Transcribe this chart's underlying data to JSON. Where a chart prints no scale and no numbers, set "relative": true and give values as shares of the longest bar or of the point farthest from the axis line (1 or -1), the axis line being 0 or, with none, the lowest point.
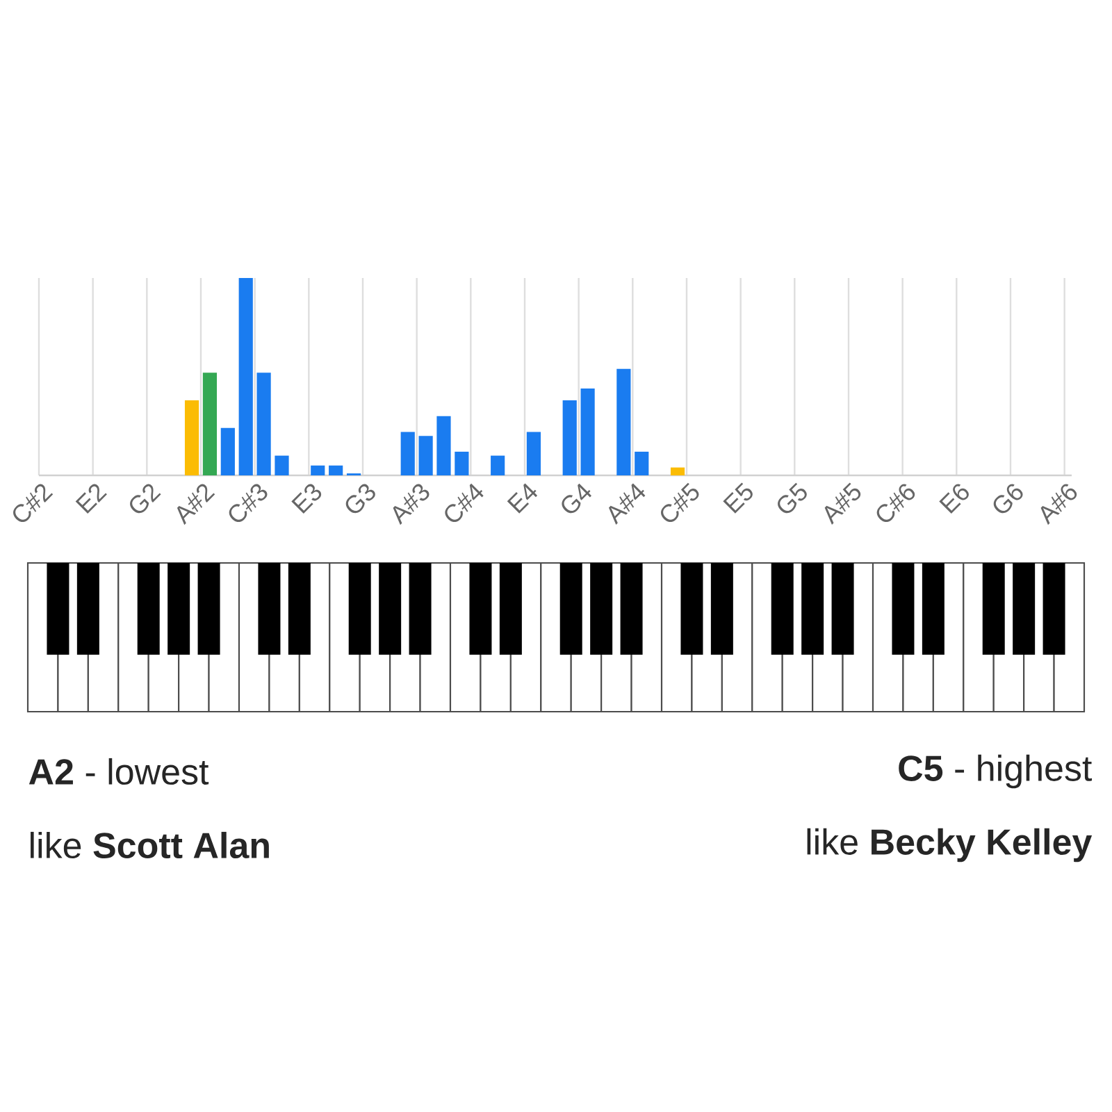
{
  "chart_data": {
    "type": "bar",
    "relative": true,
    "grid": "x",
    "categories": [
      "C#2",
      null,
      null,
      "E2",
      null,
      null,
      "G2",
      null,
      null,
      "A#2",
      null,
      null,
      "C#3",
      null,
      null,
      "E3",
      null,
      null,
      "G3",
      null,
      null,
      "A#3",
      null,
      null,
      "C#4",
      null,
      null,
      "E4",
      null,
      null,
      "G4",
      null,
      null,
      "A#4",
      null,
      null,
      "C#5",
      null,
      null,
      "E5",
      null,
      null,
      "G5",
      null,
      null,
      "A#5",
      null,
      null,
      "C#6",
      null,
      null,
      "E6",
      null,
      null,
      "G6",
      null,
      null,
      "A#6"
    ],
    "values": [
      null,
      null,
      null,
      null,
      null,
      null,
      null,
      null,
      0.38,
      0.52,
      0.24,
      1,
      0.52,
      0.1,
      null,
      0.05,
      0.05,
      0.01,
      null,
      null,
      0.22,
      0.2,
      0.3,
      0.12,
      null,
      0.1,
      null,
      0.22,
      null,
      0.38,
      0.44,
      null,
      0.54,
      0.12,
      null,
      0.04,
      null,
      null,
      null,
      null,
      null,
      null,
      null,
      null,
      null,
      null,
      null,
      null,
      null,
      null,
      null,
      null,
      null,
      null,
      null,
      null,
      null,
      null
    ],
    "colors": [
      "#1a7cf0",
      "#1a7cf0",
      "#1a7cf0",
      "#1a7cf0",
      "#1a7cf0",
      "#1a7cf0",
      "#1a7cf0",
      "#1a7cf0",
      "#fbbc04",
      "#34a853",
      "#1a7cf0",
      "#1a7cf0",
      "#1a7cf0",
      "#1a7cf0",
      "#1a7cf0",
      "#1a7cf0",
      "#1a7cf0",
      "#1a7cf0",
      "#1a7cf0",
      "#1a7cf0",
      "#1a7cf0",
      "#1a7cf0",
      "#1a7cf0",
      "#1a7cf0",
      "#1a7cf0",
      "#1a7cf0",
      "#1a7cf0",
      "#1a7cf0",
      "#1a7cf0",
      "#1a7cf0",
      "#1a7cf0",
      "#1a7cf0",
      "#1a7cf0",
      "#1a7cf0",
      "#1a7cf0",
      "#fbbc04",
      "#1a7cf0",
      "#1a7cf0",
      "#1a7cf0",
      "#1a7cf0",
      "#1a7cf0",
      "#1a7cf0",
      "#1a7cf0",
      "#1a7cf0",
      "#1a7cf0",
      "#1a7cf0",
      "#1a7cf0",
      "#1a7cf0",
      "#1a7cf0",
      "#1a7cf0",
      "#1a7cf0",
      "#1a7cf0",
      "#1a7cf0",
      "#1a7cf0",
      "#1a7cf0",
      "#1a7cf0",
      "#1a7cf0",
      "#1a7cf0"
    ],
    "annotations": [
      "**A2** - lowest",
      "like **Scott Alan**",
      "**C5** - highest",
      "like **Becky Kelley**"
    ]
  }
}
